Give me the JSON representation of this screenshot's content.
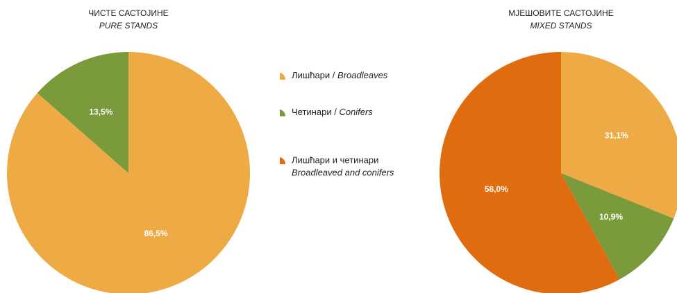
{
  "chart_data": [
    {
      "type": "pie",
      "title": "ЧИСТЕ САСТОЈИНЕ",
      "subtitle": "PURE STANDS",
      "categories": [
        "Broadleaves",
        "Conifers"
      ],
      "values": [
        86.5,
        13.5
      ],
      "value_labels": [
        "86,5%",
        "13,5%"
      ],
      "colors": [
        "#eeab45",
        "#7a9a3c"
      ]
    },
    {
      "type": "pie",
      "title": "МЈЕШОВИТЕ САСТОЈИНЕ",
      "subtitle": "MIXED STANDS",
      "categories": [
        "Broadleaves",
        "Conifers",
        "Broadleaved and conifers"
      ],
      "values": [
        31.1,
        10.9,
        58.0
      ],
      "value_labels": [
        "31,1%",
        "10,9%",
        "58,0%"
      ],
      "colors": [
        "#eeab45",
        "#7a9a3c",
        "#e06c10"
      ]
    }
  ],
  "legend": [
    {
      "text": "Лишћари /",
      "text_en": "Broadleaves",
      "color": "#eeab45"
    },
    {
      "text": "Четинари /",
      "text_en": "Conifers",
      "color": "#7a9a3c"
    },
    {
      "text": "Лишћари и четинари",
      "text_en": "Broadleaved and conifers",
      "color": "#e06c10"
    }
  ]
}
